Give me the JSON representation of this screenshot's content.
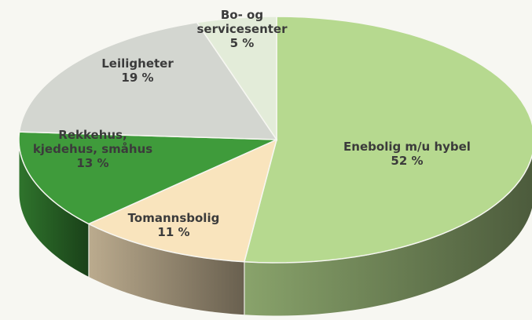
{
  "chart_data": {
    "type": "pie3d",
    "categories": [
      "Enebolig m/u hybel",
      "Tomannsbolig",
      "Rekkehus,\nkjedehus, småhus",
      "Leiligheter",
      "Bo- og\nservicesenter"
    ],
    "values": [
      52,
      11,
      13,
      19,
      5
    ],
    "value_labels": [
      "52 %",
      "11 %",
      "13 %",
      "19 %",
      "5 %"
    ],
    "colors": [
      "#b6d98f",
      "#f9e4bd",
      "#3f9b3b",
      "#d3d6d0",
      "#e3ecd9"
    ]
  }
}
